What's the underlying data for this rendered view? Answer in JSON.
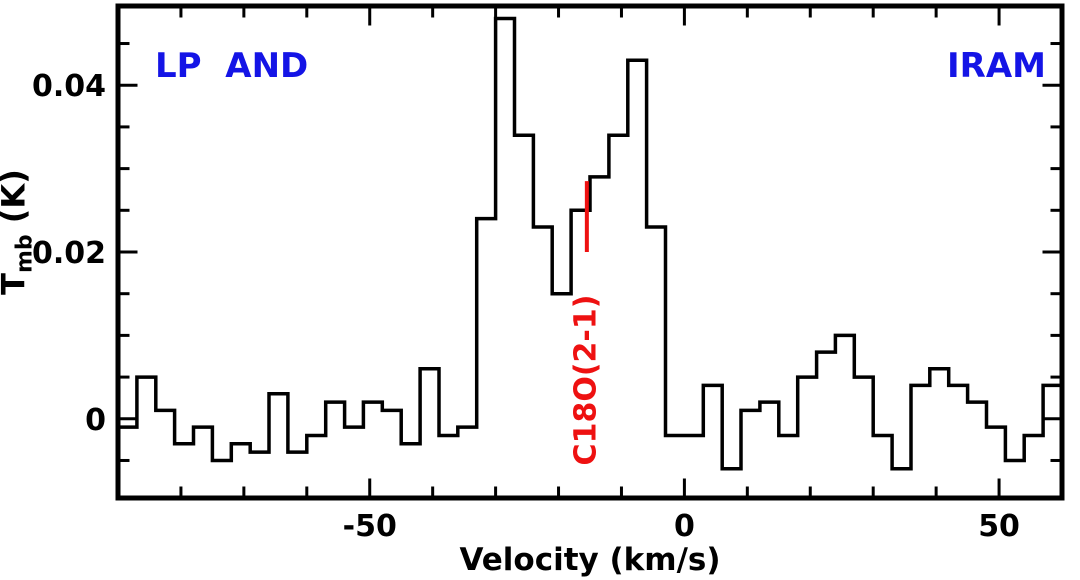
{
  "labels": {
    "top_left": "LP  AND",
    "top_right": "IRAM",
    "corner_color": "#1414e6"
  },
  "chart_data": {
    "type": "line",
    "subtype": "step-histogram-spectrum",
    "title": "",
    "xlabel": "Velocity (km/s)",
    "ylabel": "Tmb (K)",
    "ylabel_main": "T",
    "ylabel_sub": "mb",
    "ylabel_unit": " (K)",
    "xlim": [
      -90,
      60
    ],
    "ylim": [
      -0.0095,
      0.0495
    ],
    "x_major_ticks": [
      -50,
      0,
      50
    ],
    "x_tick_labels": [
      "-50",
      "0",
      "50"
    ],
    "x_minor_tick_step": 10,
    "y_major_ticks": [
      0,
      0.02,
      0.04
    ],
    "y_tick_labels": [
      "0",
      "0.02",
      "0.04"
    ],
    "y_minor_tick_step": 0.005,
    "grid": false,
    "legend": false,
    "line_color": "#000000",
    "series": [
      {
        "name": "C18O(2-1) spectrum",
        "v_start": -90,
        "channel_width": 3,
        "t_values": [
          -0.001,
          0.005,
          0.001,
          -0.003,
          -0.001,
          -0.005,
          -0.003,
          -0.004,
          0.003,
          -0.004,
          -0.002,
          0.002,
          -0.001,
          0.002,
          0.001,
          -0.003,
          0.006,
          -0.002,
          -0.001,
          0.024,
          0.048,
          0.034,
          0.023,
          0.015,
          0.025,
          0.029,
          0.034,
          0.043,
          0.023,
          -0.002,
          -0.002,
          0.004,
          -0.006,
          0.001,
          0.002,
          -0.002,
          0.005,
          0.008,
          0.01,
          0.005,
          -0.002,
          -0.006,
          0.004,
          0.006,
          0.004,
          0.002,
          -0.001,
          -0.005,
          -0.002,
          0.004
        ]
      }
    ],
    "annotation": {
      "label": "C18O(2-1)",
      "color": "#ee1111",
      "v": -15.5,
      "t_line_bottom": 0.02,
      "t_line_top": 0.0285
    }
  }
}
